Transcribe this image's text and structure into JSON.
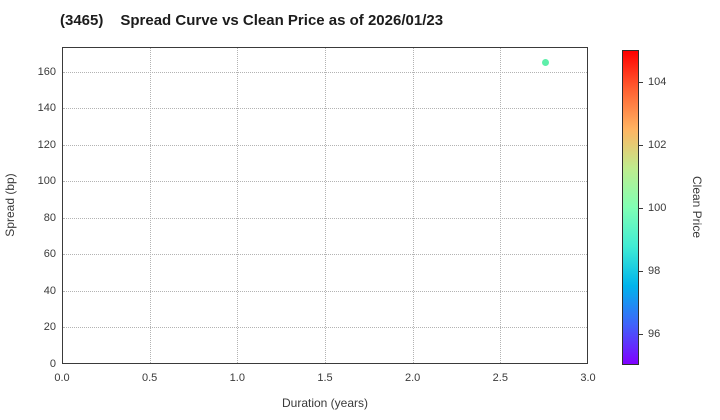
{
  "title": {
    "code": "(3465)",
    "text": "Spread Curve vs Clean Price as of 2026/01/23"
  },
  "chart_data": {
    "type": "scatter",
    "title": "(3465) Spread Curve vs Clean Price as of 2026/01/23",
    "xlabel": "Duration (years)",
    "ylabel": "Spread (bp)",
    "xlim": [
      0.0,
      3.0
    ],
    "ylim": [
      0,
      173.5
    ],
    "x_ticks": [
      {
        "value": 0.0,
        "label": "0.0"
      },
      {
        "value": 0.5,
        "label": "0.5"
      },
      {
        "value": 1.0,
        "label": "1.0"
      },
      {
        "value": 1.5,
        "label": "1.5"
      },
      {
        "value": 2.0,
        "label": "2.0"
      },
      {
        "value": 2.5,
        "label": "2.5"
      },
      {
        "value": 3.0,
        "label": "3.0"
      }
    ],
    "y_ticks": [
      {
        "value": 0,
        "label": "0"
      },
      {
        "value": 20,
        "label": "20"
      },
      {
        "value": 40,
        "label": "40"
      },
      {
        "value": 60,
        "label": "60"
      },
      {
        "value": 80,
        "label": "80"
      },
      {
        "value": 100,
        "label": "100"
      },
      {
        "value": 120,
        "label": "120"
      },
      {
        "value": 140,
        "label": "140"
      },
      {
        "value": 160,
        "label": "160"
      }
    ],
    "grid": "dotted, both axes",
    "points": [
      {
        "duration": 2.76,
        "spread": 165,
        "clean_price": 99.7,
        "color": "#5eefaa"
      }
    ],
    "colorbar": {
      "label": "Clean Price",
      "min": 95,
      "max": 105,
      "ticks": [
        {
          "value": 96,
          "label": "96"
        },
        {
          "value": 98,
          "label": "98"
        },
        {
          "value": 100,
          "label": "100"
        },
        {
          "value": 102,
          "label": "102"
        },
        {
          "value": 104,
          "label": "104"
        }
      ],
      "colormap": "rainbow",
      "gradient_stops": [
        {
          "pos": 0.0,
          "color": "#8000ff"
        },
        {
          "pos": 0.125,
          "color": "#4062fa"
        },
        {
          "pos": 0.25,
          "color": "#00b4ec"
        },
        {
          "pos": 0.375,
          "color": "#40ecd4"
        },
        {
          "pos": 0.5,
          "color": "#80ffb4"
        },
        {
          "pos": 0.625,
          "color": "#bfec8e"
        },
        {
          "pos": 0.75,
          "color": "#ffb462"
        },
        {
          "pos": 0.875,
          "color": "#ff6232"
        },
        {
          "pos": 1.0,
          "color": "#ff0000"
        }
      ]
    },
    "colors": {
      "background": "#ffffff",
      "plot_border": "#3a3a3a",
      "gridline": "#b3b3b3",
      "tick_text": "#3a3a3a",
      "title_text": "#1c1c1c"
    }
  }
}
